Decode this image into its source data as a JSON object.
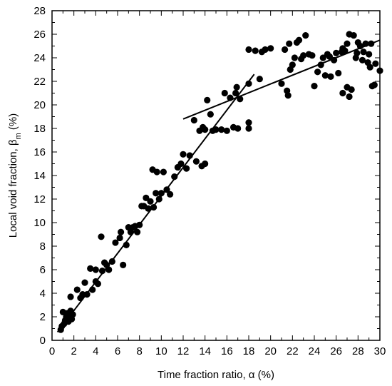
{
  "chart_data": {
    "type": "scatter",
    "title": "",
    "xlabel": "Time fraction ratio, α (%)",
    "ylabel": {
      "main": "Local void fraction, β",
      "subscript": "m",
      "suffix": " (%)"
    },
    "xlim": [
      0,
      30
    ],
    "ylim": [
      0,
      28
    ],
    "xticks": [
      0,
      2,
      4,
      6,
      8,
      10,
      12,
      14,
      16,
      18,
      20,
      22,
      24,
      26,
      28,
      30
    ],
    "yticks": [
      0,
      2,
      4,
      6,
      8,
      10,
      12,
      14,
      16,
      18,
      20,
      22,
      24,
      26,
      28
    ],
    "grid": false,
    "marker_color": "#000000",
    "points": [
      [
        0.8,
        0.9
      ],
      [
        0.9,
        1.2
      ],
      [
        1.0,
        2.4
      ],
      [
        1.1,
        1.4
      ],
      [
        1.2,
        1.7
      ],
      [
        1.3,
        2.0
      ],
      [
        1.4,
        2.3
      ],
      [
        1.5,
        1.6
      ],
      [
        1.6,
        2.1
      ],
      [
        1.7,
        2.5
      ],
      [
        1.8,
        1.8
      ],
      [
        1.9,
        2.2
      ],
      [
        1.7,
        3.7
      ],
      [
        2.3,
        4.3
      ],
      [
        2.6,
        3.6
      ],
      [
        2.8,
        3.9
      ],
      [
        3.0,
        4.9
      ],
      [
        3.2,
        3.9
      ],
      [
        3.5,
        6.1
      ],
      [
        3.7,
        4.3
      ],
      [
        4.0,
        5.0
      ],
      [
        4.0,
        6.0
      ],
      [
        4.2,
        4.8
      ],
      [
        4.5,
        8.8
      ],
      [
        4.6,
        5.9
      ],
      [
        4.8,
        6.6
      ],
      [
        5.0,
        6.4
      ],
      [
        5.2,
        6.0
      ],
      [
        5.5,
        6.7
      ],
      [
        5.8,
        8.3
      ],
      [
        6.2,
        8.7
      ],
      [
        6.3,
        9.2
      ],
      [
        6.5,
        6.4
      ],
      [
        6.8,
        8.1
      ],
      [
        7.0,
        9.6
      ],
      [
        7.2,
        9.2
      ],
      [
        7.4,
        9.6
      ],
      [
        7.6,
        9.7
      ],
      [
        7.8,
        9.2
      ],
      [
        8.0,
        9.8
      ],
      [
        8.2,
        11.4
      ],
      [
        8.4,
        11.4
      ],
      [
        8.6,
        12.1
      ],
      [
        8.8,
        11.2
      ],
      [
        9.0,
        11.8
      ],
      [
        9.2,
        14.5
      ],
      [
        9.3,
        11.3
      ],
      [
        9.5,
        12.5
      ],
      [
        9.6,
        14.3
      ],
      [
        9.8,
        12.0
      ],
      [
        10.0,
        12.5
      ],
      [
        10.2,
        14.3
      ],
      [
        10.5,
        12.8
      ],
      [
        10.8,
        12.4
      ],
      [
        11.2,
        13.9
      ],
      [
        11.5,
        14.7
      ],
      [
        11.8,
        15.0
      ],
      [
        12.0,
        15.8
      ],
      [
        12.3,
        14.6
      ],
      [
        12.6,
        15.7
      ],
      [
        13.0,
        18.7
      ],
      [
        13.2,
        15.2
      ],
      [
        13.5,
        17.8
      ],
      [
        13.7,
        14.8
      ],
      [
        13.8,
        18.1
      ],
      [
        14.0,
        17.9
      ],
      [
        14.0,
        15.0
      ],
      [
        14.2,
        20.4
      ],
      [
        14.5,
        19.2
      ],
      [
        14.7,
        17.8
      ],
      [
        15.0,
        17.9
      ],
      [
        15.5,
        17.9
      ],
      [
        15.8,
        21.0
      ],
      [
        16.0,
        17.8
      ],
      [
        16.3,
        20.6
      ],
      [
        16.6,
        18.1
      ],
      [
        16.8,
        21.0
      ],
      [
        16.9,
        21.5
      ],
      [
        17.0,
        18.0
      ],
      [
        17.2,
        20.5
      ],
      [
        18.0,
        18.0
      ],
      [
        18.0,
        18.5
      ],
      [
        18.0,
        21.8
      ],
      [
        18.0,
        24.7
      ],
      [
        18.6,
        24.6
      ],
      [
        19.0,
        22.2
      ],
      [
        19.2,
        24.5
      ],
      [
        19.5,
        24.7
      ],
      [
        20.0,
        24.8
      ],
      [
        21.0,
        21.8
      ],
      [
        21.3,
        24.7
      ],
      [
        21.5,
        21.2
      ],
      [
        21.6,
        20.8
      ],
      [
        21.7,
        25.2
      ],
      [
        21.8,
        23.0
      ],
      [
        22.0,
        23.4
      ],
      [
        22.2,
        24.0
      ],
      [
        22.4,
        25.3
      ],
      [
        22.6,
        25.5
      ],
      [
        22.8,
        23.9
      ],
      [
        23.0,
        24.2
      ],
      [
        23.2,
        25.9
      ],
      [
        23.5,
        24.3
      ],
      [
        23.8,
        24.2
      ],
      [
        24.0,
        21.6
      ],
      [
        24.3,
        22.8
      ],
      [
        24.6,
        23.4
      ],
      [
        24.8,
        24.0
      ],
      [
        25.0,
        22.5
      ],
      [
        25.2,
        24.3
      ],
      [
        25.4,
        24.1
      ],
      [
        25.5,
        22.4
      ],
      [
        25.8,
        23.8
      ],
      [
        26.0,
        24.4
      ],
      [
        26.2,
        22.7
      ],
      [
        26.5,
        24.5
      ],
      [
        26.8,
        24.6
      ],
      [
        27.0,
        21.5
      ],
      [
        27.2,
        20.7
      ],
      [
        27.4,
        21.3
      ],
      [
        27.6,
        25.9
      ],
      [
        27.8,
        24.0
      ],
      [
        28.0,
        25.3
      ],
      [
        28.2,
        25.0
      ],
      [
        28.4,
        23.8
      ],
      [
        28.5,
        24.5
      ],
      [
        28.7,
        25.2
      ],
      [
        28.9,
        23.6
      ],
      [
        29.0,
        24.3
      ],
      [
        29.1,
        23.2
      ],
      [
        29.2,
        25.2
      ],
      [
        29.3,
        21.6
      ],
      [
        29.5,
        21.7
      ],
      [
        29.6,
        23.5
      ],
      [
        30.0,
        22.9
      ],
      [
        26.6,
        21.0
      ],
      [
        26.6,
        24.8
      ],
      [
        27.0,
        25.2
      ],
      [
        27.2,
        26.0
      ],
      [
        27.9,
        24.4
      ]
    ],
    "fit_lines": [
      {
        "x": [
          0.5,
          18.5
        ],
        "y": [
          0.7,
          22.6
        ]
      },
      {
        "x": [
          12.0,
          30.0
        ],
        "y": [
          18.8,
          25.5
        ]
      }
    ]
  }
}
